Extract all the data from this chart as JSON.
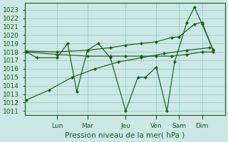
{
  "background_color": "#cce8e4",
  "grid_color": "#99cccc",
  "line_color": "#1a5c1a",
  "ylabel": "Pression niveau de la mer( hPa )",
  "ylim": [
    1010.5,
    1023.8
  ],
  "yticks": [
    1011,
    1012,
    1013,
    1014,
    1015,
    1016,
    1017,
    1018,
    1019,
    1020,
    1021,
    1022,
    1023
  ],
  "day_labels": [
    "Lun",
    "Mar",
    "Jeu",
    "Ven",
    "Sam",
    "Dim"
  ],
  "day_positions": [
    2.0,
    4.0,
    6.5,
    8.5,
    10.0,
    11.5
  ],
  "xlim": [
    -0.1,
    13.0
  ],
  "lines": [
    {
      "x": [
        0.0,
        0.7,
        2.0,
        2.7,
        3.3,
        4.0,
        4.7,
        5.5,
        6.5,
        7.3,
        7.8,
        8.5,
        9.2,
        9.7,
        10.5,
        11.0,
        11.5,
        12.2
      ],
      "y": [
        1018.0,
        1017.3,
        1017.3,
        1019.0,
        1013.3,
        1018.2,
        1019.0,
        1017.3,
        1011.0,
        1015.0,
        1015.0,
        1016.2,
        1011.0,
        1016.8,
        1021.5,
        1023.3,
        1021.3,
        1018.3
      ]
    },
    {
      "x": [
        0.0,
        2.0,
        4.0,
        5.5,
        6.5,
        7.5,
        8.5,
        9.5,
        10.0,
        11.0,
        11.5,
        12.2
      ],
      "y": [
        1018.1,
        1018.0,
        1018.2,
        1018.5,
        1018.8,
        1019.0,
        1019.2,
        1019.7,
        1019.8,
        1021.3,
        1021.5,
        1018.3
      ]
    },
    {
      "x": [
        0.0,
        2.0,
        4.0,
        5.5,
        6.5,
        7.5,
        8.5,
        9.5,
        10.5,
        11.5,
        12.2
      ],
      "y": [
        1018.0,
        1017.7,
        1017.5,
        1017.5,
        1017.5,
        1017.5,
        1017.5,
        1017.5,
        1017.7,
        1018.0,
        1018.0
      ]
    },
    {
      "x": [
        0.0,
        1.5,
        3.0,
        4.5,
        6.0,
        7.5,
        9.0,
        10.5,
        12.0
      ],
      "y": [
        1012.3,
        1013.5,
        1015.0,
        1016.0,
        1016.8,
        1017.3,
        1017.8,
        1018.2,
        1018.5
      ]
    }
  ]
}
